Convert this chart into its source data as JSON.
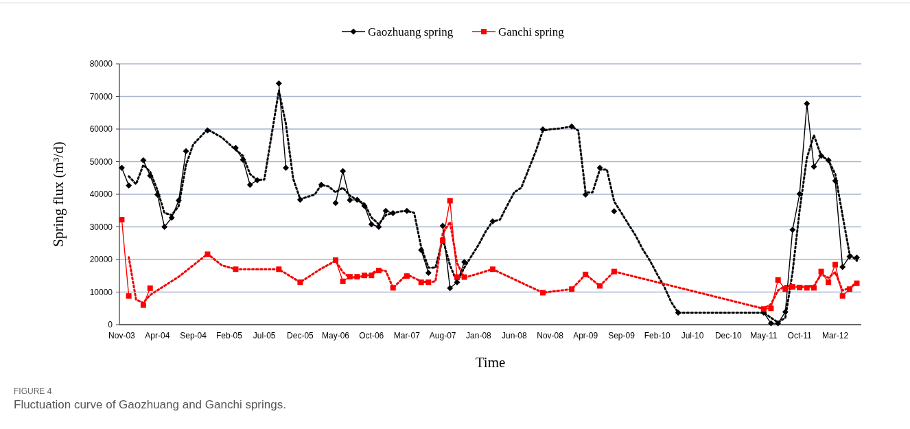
{
  "chart_data": {
    "type": "line",
    "xlabel": "Time",
    "ylabel": "Spring flux (m³/d)",
    "xlim": [
      "2003-10-22",
      "2012-06-20"
    ],
    "xticks": [
      {
        "value": "2003-11",
        "label": "Nov-03"
      },
      {
        "value": "2004-04",
        "label": "Apr-04"
      },
      {
        "value": "2004-09",
        "label": "Sep-04"
      },
      {
        "value": "2005-02",
        "label": "Feb-05"
      },
      {
        "value": "2005-07",
        "label": "Jul-05"
      },
      {
        "value": "2005-12",
        "label": "Dec-05"
      },
      {
        "value": "2006-05",
        "label": "May-06"
      },
      {
        "value": "2006-10",
        "label": "Oct-06"
      },
      {
        "value": "2007-03",
        "label": "Mar-07"
      },
      {
        "value": "2007-08",
        "label": "Aug-07"
      },
      {
        "value": "2008-01",
        "label": "Jan-08"
      },
      {
        "value": "2008-06",
        "label": "Jun-08"
      },
      {
        "value": "2008-11",
        "label": "Nov-08"
      },
      {
        "value": "2009-04",
        "label": "Apr-09"
      },
      {
        "value": "2009-09",
        "label": "Sep-09"
      },
      {
        "value": "2010-02",
        "label": "Feb-10"
      },
      {
        "value": "2010-07",
        "label": "Jul-10"
      },
      {
        "value": "2010-12",
        "label": "Dec-10"
      },
      {
        "value": "2011-05",
        "label": "May-11"
      },
      {
        "value": "2011-10",
        "label": "Oct-11"
      },
      {
        "value": "2012-03",
        "label": "Mar-12"
      }
    ],
    "ylim": [
      0,
      80000
    ],
    "yticks": [
      0,
      10000,
      20000,
      30000,
      40000,
      50000,
      60000,
      70000,
      80000
    ],
    "grid": "y",
    "legend": "top",
    "series": [
      {
        "name": "Gaozhuang spring",
        "color": "#000000",
        "marker": "diamond",
        "line_style": "solid",
        "x": [
          "2003-11",
          "2003-12",
          "2004-01",
          "2004-02",
          "2004-03",
          "2004-04",
          "2004-05",
          "2004-06",
          "2004-07",
          "2004-08",
          "2004-09",
          "2004-11",
          "2004-12",
          "2005-03",
          "2005-04",
          "2005-05",
          "2005-06",
          "2005-07",
          "2005-09",
          "2005-10",
          "2005-11",
          "2005-12",
          "2006-01",
          "2006-03",
          "2006-04",
          "2006-05",
          "2006-06",
          "2006-07",
          "2006-08",
          "2006-09",
          "2006-10",
          "2006-11",
          "2006-12",
          "2007-01",
          "2007-02",
          "2007-03",
          "2007-04",
          "2007-05",
          "2007-06",
          "2007-07",
          "2007-08",
          "2007-09",
          "2007-10",
          "2007-11",
          "2007-12",
          "2008-03",
          "2008-04",
          "2008-10",
          "2008-11",
          "2009-02",
          "2009-03",
          "2009-04",
          "2009-05",
          "2009-06",
          "2009-07",
          "2009-08",
          "2009-09",
          "2010-05",
          "2010-06",
          "2011-05",
          "2011-06",
          "2011-07",
          "2011-08",
          "2011-09",
          "2011-10",
          "2011-11",
          "2011-12",
          "2012-01",
          "2012-02",
          "2012-03",
          "2012-04",
          "2012-05",
          "2012-06"
        ],
        "values": [
          48100,
          42700,
          null,
          50400,
          45700,
          39900,
          30000,
          32800,
          38100,
          53200,
          null,
          59600,
          null,
          54200,
          50600,
          42900,
          44300,
          null,
          74000,
          48100,
          null,
          38300,
          null,
          42900,
          null,
          37300,
          47100,
          38200,
          38300,
          36400,
          30800,
          30000,
          34900,
          34200,
          null,
          34900,
          null,
          22900,
          15900,
          null,
          30300,
          11200,
          13000,
          19200,
          null,
          31700,
          null,
          59900,
          null,
          60800,
          null,
          39900,
          null,
          48100,
          null,
          34800,
          null,
          3700,
          null,
          3700,
          400,
          400,
          3900,
          29100,
          40100,
          67800,
          48500,
          51800,
          50400,
          44100,
          17700,
          20900,
          20600
        ]
      },
      {
        "color": "#0a0a0a",
        "line_style": "dotted",
        "x": [
          "2003-12",
          "2004-01",
          "2004-02",
          "2004-03",
          "2004-04",
          "2004-05",
          "2004-06",
          "2004-07",
          "2004-08",
          "2004-09",
          "2004-11",
          "2005-01",
          "2005-03",
          "2005-04",
          "2005-05",
          "2005-06",
          "2005-07",
          "2005-08",
          "2005-09",
          "2005-10",
          "2005-11",
          "2005-12",
          "2006-02",
          "2006-03",
          "2006-04",
          "2006-05",
          "2006-06",
          "2006-07",
          "2006-08",
          "2006-09",
          "2006-10",
          "2006-11",
          "2006-12",
          "2007-01",
          "2007-02",
          "2007-03",
          "2007-04",
          "2007-05",
          "2007-06",
          "2007-07",
          "2007-08",
          "2007-09",
          "2007-10",
          "2007-11",
          "2007-12",
          "2008-01",
          "2008-02",
          "2008-03",
          "2008-04",
          "2008-05",
          "2008-06",
          "2008-07",
          "2008-08",
          "2008-09",
          "2008-10",
          "2008-11",
          "2008-12",
          "2009-01",
          "2009-02",
          "2009-03",
          "2009-04",
          "2009-05",
          "2009-06",
          "2009-07",
          "2009-08",
          "2009-09",
          "2009-10",
          "2009-11",
          "2009-12",
          "2010-01",
          "2010-02",
          "2010-03",
          "2010-04",
          "2010-05",
          "2011-05",
          "2011-06",
          "2011-07",
          "2011-08",
          "2011-09",
          "2011-10",
          "2011-11",
          "2011-12",
          "2012-01",
          "2012-02",
          "2012-03",
          "2012-04",
          "2012-05",
          "2012-06"
        ],
        "values": [
          45500,
          43100,
          49000,
          46900,
          41300,
          34300,
          33600,
          36400,
          49000,
          55300,
          59900,
          57400,
          53600,
          51800,
          46200,
          44300,
          44500,
          58100,
          71800,
          61600,
          44800,
          38500,
          39900,
          42900,
          42400,
          40600,
          42000,
          39600,
          38200,
          37100,
          32900,
          30800,
          33600,
          34300,
          34700,
          34900,
          34300,
          23800,
          17500,
          17500,
          26300,
          18200,
          13000,
          17500,
          21000,
          24500,
          28700,
          31700,
          32200,
          36400,
          40600,
          42000,
          47600,
          53200,
          59500,
          59900,
          60100,
          60400,
          60800,
          59500,
          40600,
          40600,
          47600,
          47600,
          37800,
          34300,
          30800,
          27300,
          23100,
          19600,
          15400,
          11900,
          7000,
          3700,
          3700,
          2100,
          700,
          2100,
          16100,
          35000,
          51100,
          58100,
          51800,
          50400,
          46200,
          33600,
          21700,
          19600
        ]
      },
      {
        "name": "Ganchi spring",
        "color": "#ff0000",
        "marker": "square",
        "line_style": "solid",
        "x": [
          "2003-11",
          "2003-12",
          "2004-01",
          "2004-02",
          "2004-03",
          "2004-04",
          "2004-11",
          "2004-12",
          "2005-03",
          "2005-04",
          "2005-09",
          "2005-10",
          "2005-12",
          "2006-01",
          "2006-05",
          "2006-06",
          "2006-07",
          "2006-08",
          "2006-09",
          "2006-10",
          "2006-11",
          "2006-12",
          "2007-01",
          "2007-02",
          "2007-03",
          "2007-04",
          "2007-05",
          "2007-06",
          "2007-07",
          "2007-08",
          "2007-09",
          "2007-10",
          "2007-11",
          "2007-12",
          "2008-03",
          "2008-04",
          "2008-10",
          "2008-11",
          "2009-02",
          "2009-03",
          "2009-04",
          "2009-05",
          "2009-06",
          "2009-07",
          "2009-08",
          "2009-09",
          "2011-05",
          "2011-06",
          "2011-07",
          "2011-08",
          "2011-09",
          "2011-10",
          "2011-11",
          "2011-12",
          "2012-01",
          "2012-02",
          "2012-03",
          "2012-04",
          "2012-05",
          "2012-06"
        ],
        "values": [
          32200,
          8800,
          null,
          6000,
          11200,
          null,
          21600,
          null,
          17000,
          null,
          17000,
          null,
          13000,
          null,
          19800,
          13300,
          14700,
          14700,
          15100,
          15100,
          16600,
          null,
          11300,
          null,
          14900,
          null,
          13000,
          13000,
          null,
          25900,
          38000,
          14600,
          14600,
          null,
          17000,
          null,
          9800,
          null,
          10900,
          null,
          15400,
          null,
          11900,
          null,
          16300,
          null,
          4800,
          5000,
          13700,
          10900,
          11600,
          11400,
          11300,
          11300,
          16300,
          13000,
          18400,
          8800,
          10900,
          12700
        ]
      },
      {
        "color": "#f20000",
        "line_style": "dotted",
        "x": [
          "2003-12",
          "2004-01",
          "2004-02",
          "2004-03",
          "2004-07",
          "2004-11",
          "2005-01",
          "2005-03",
          "2005-09",
          "2005-12",
          "2006-03",
          "2006-05",
          "2006-06",
          "2006-07",
          "2006-09",
          "2006-11",
          "2006-12",
          "2007-01",
          "2007-03",
          "2007-05",
          "2007-06",
          "2007-07",
          "2007-08",
          "2007-09",
          "2007-10",
          "2007-11",
          "2008-03",
          "2008-10",
          "2009-02",
          "2009-04",
          "2009-06",
          "2009-08",
          "2011-05",
          "2011-06",
          "2011-07",
          "2011-08",
          "2011-10",
          "2011-12",
          "2012-01",
          "2012-02",
          "2012-03",
          "2012-04",
          "2012-05",
          "2012-06"
        ],
        "values": [
          20700,
          7700,
          6700,
          9100,
          14700,
          21700,
          18200,
          17000,
          17000,
          13000,
          17200,
          19600,
          16100,
          14400,
          14700,
          16800,
          16500,
          11300,
          15400,
          13300,
          13000,
          13300,
          28000,
          31500,
          18900,
          14400,
          17000,
          9800,
          10900,
          15400,
          11900,
          16300,
          4900,
          6300,
          10500,
          11900,
          11600,
          11900,
          15400,
          14400,
          16100,
          10500,
          11200,
          13000
        ]
      }
    ],
    "annotations": [
      "FIGURE 4",
      "Fluctuation curve of Gaozhuang and Ganchi springs."
    ]
  }
}
